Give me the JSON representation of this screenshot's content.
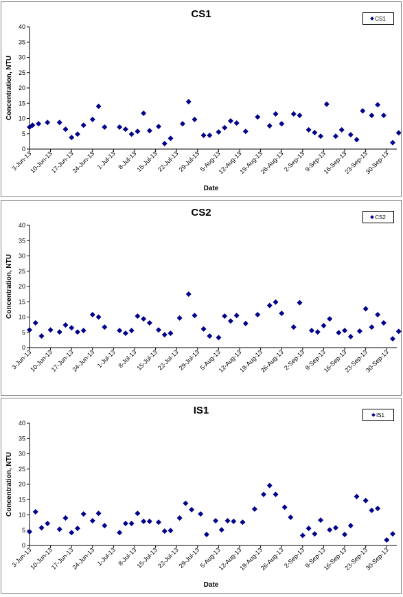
{
  "colors": {
    "marker": "#00008B",
    "axis": "#000000",
    "frame": "#808080"
  },
  "chart_data": [
    {
      "type": "scatter",
      "title": "CS1",
      "legend": "CS1",
      "legend_position": "top-right",
      "xlabel": "Date",
      "ylabel": "Concentration, NTU",
      "ylim": [
        0,
        40
      ],
      "yticks": [
        "0",
        "5",
        "10",
        "15",
        "20",
        "25",
        "30",
        "35",
        "40"
      ],
      "grid": false,
      "xticks": [
        "3-Jun-13",
        "10-Jun-13",
        "17-Jun-13",
        "24-Jun-13",
        "1-Jul-13",
        "8-Jul-13",
        "15-Jul-13",
        "22-Jul-13",
        "29-Jul-13",
        "5-Aug-13",
        "12-Aug-13",
        "19-Aug-13",
        "26-Aug-13",
        "2-Sep-13",
        "9-Sep-13",
        "16-Sep-13",
        "23-Sep-13",
        "30-Sep-13"
      ],
      "xlim": [
        "3-Jun-13",
        "2-Oct-13"
      ],
      "points": [
        {
          "x": "3-Jun-13",
          "y": 7.2
        },
        {
          "x": "4-Jun-13",
          "y": 7.8
        },
        {
          "x": "6-Jun-13",
          "y": 8.3
        },
        {
          "x": "9-Jun-13",
          "y": 8.7
        },
        {
          "x": "13-Jun-13",
          "y": 8.7
        },
        {
          "x": "15-Jun-13",
          "y": 6.5
        },
        {
          "x": "17-Jun-13",
          "y": 3.8
        },
        {
          "x": "19-Jun-13",
          "y": 4.9
        },
        {
          "x": "21-Jun-13",
          "y": 7.8
        },
        {
          "x": "24-Jun-13",
          "y": 9.7
        },
        {
          "x": "26-Jun-13",
          "y": 14
        },
        {
          "x": "28-Jun-13",
          "y": 7.2
        },
        {
          "x": "3-Jul-13",
          "y": 7.2
        },
        {
          "x": "5-Jul-13",
          "y": 6.5
        },
        {
          "x": "7-Jul-13",
          "y": 4.9
        },
        {
          "x": "9-Jul-13",
          "y": 5.8
        },
        {
          "x": "11-Jul-13",
          "y": 11.7
        },
        {
          "x": "13-Jul-13",
          "y": 6
        },
        {
          "x": "16-Jul-13",
          "y": 7.4
        },
        {
          "x": "18-Jul-13",
          "y": 1.8
        },
        {
          "x": "20-Jul-13",
          "y": 3.5
        },
        {
          "x": "24-Jul-13",
          "y": 8.3
        },
        {
          "x": "26-Jul-13",
          "y": 15.5
        },
        {
          "x": "28-Jul-13",
          "y": 9.7
        },
        {
          "x": "31-Jul-13",
          "y": 4.5
        },
        {
          "x": "2-Aug-13",
          "y": 4.5
        },
        {
          "x": "5-Aug-13",
          "y": 5.6
        },
        {
          "x": "7-Aug-13",
          "y": 7
        },
        {
          "x": "9-Aug-13",
          "y": 9.2
        },
        {
          "x": "11-Aug-13",
          "y": 8.5
        },
        {
          "x": "14-Aug-13",
          "y": 5.8
        },
        {
          "x": "18-Aug-13",
          "y": 10.5
        },
        {
          "x": "22-Aug-13",
          "y": 7.6
        },
        {
          "x": "24-Aug-13",
          "y": 11.5
        },
        {
          "x": "26-Aug-13",
          "y": 8.3
        },
        {
          "x": "30-Aug-13",
          "y": 11.5
        },
        {
          "x": "1-Sep-13",
          "y": 11
        },
        {
          "x": "4-Sep-13",
          "y": 6.3
        },
        {
          "x": "6-Sep-13",
          "y": 5.4
        },
        {
          "x": "8-Sep-13",
          "y": 4.2
        },
        {
          "x": "10-Sep-13",
          "y": 14.7
        },
        {
          "x": "13-Sep-13",
          "y": 4.2
        },
        {
          "x": "15-Sep-13",
          "y": 6.3
        },
        {
          "x": "18-Sep-13",
          "y": 4.7
        },
        {
          "x": "20-Sep-13",
          "y": 3.1
        },
        {
          "x": "22-Sep-13",
          "y": 12.5
        },
        {
          "x": "25-Sep-13",
          "y": 11
        },
        {
          "x": "27-Sep-13",
          "y": 14.5
        },
        {
          "x": "29-Sep-13",
          "y": 11
        },
        {
          "x": "2-Oct-13",
          "y": 2.1
        },
        {
          "x": "4-Oct-13",
          "y": 5.3
        }
      ]
    },
    {
      "type": "scatter",
      "title": "CS2",
      "legend": "CS2",
      "legend_position": "top-right",
      "xlabel": "",
      "ylabel": "Concentration, NTU",
      "ylim": [
        0,
        40
      ],
      "yticks": [
        "0",
        "5",
        "10",
        "15",
        "20",
        "25",
        "30",
        "35",
        "40"
      ],
      "grid": false,
      "xticks": [
        "3-Jun-13",
        "10-Jun-13",
        "17-Jun-13",
        "24-Jun-13",
        "1-Jul-13",
        "8-Jul-13",
        "15-Jul-13",
        "22-Jul-13",
        "29-Jul-13",
        "5-Aug-13",
        "12-Aug-13",
        "19-Aug-13",
        "26-Aug-13",
        "2-Sep-13",
        "9-Sep-13",
        "16-Sep-13",
        "23-Sep-13",
        "30-Sep-13"
      ],
      "xlim": [
        "3-Jun-13",
        "2-Oct-13"
      ],
      "points": [
        {
          "x": "3-Jun-13",
          "y": 5.8
        },
        {
          "x": "5-Jun-13",
          "y": 8.1
        },
        {
          "x": "7-Jun-13",
          "y": 3.8
        },
        {
          "x": "10-Jun-13",
          "y": 5.8
        },
        {
          "x": "13-Jun-13",
          "y": 5.1
        },
        {
          "x": "15-Jun-13",
          "y": 7.4
        },
        {
          "x": "17-Jun-13",
          "y": 6.5
        },
        {
          "x": "19-Jun-13",
          "y": 5.1
        },
        {
          "x": "21-Jun-13",
          "y": 5.6
        },
        {
          "x": "24-Jun-13",
          "y": 10.8
        },
        {
          "x": "26-Jun-13",
          "y": 10
        },
        {
          "x": "28-Jun-13",
          "y": 6.7
        },
        {
          "x": "3-Jul-13",
          "y": 5.6
        },
        {
          "x": "5-Jul-13",
          "y": 4.7
        },
        {
          "x": "7-Jul-13",
          "y": 5.6
        },
        {
          "x": "9-Jul-13",
          "y": 10.3
        },
        {
          "x": "11-Jul-13",
          "y": 9.4
        },
        {
          "x": "13-Jul-13",
          "y": 8.1
        },
        {
          "x": "16-Jul-13",
          "y": 5.8
        },
        {
          "x": "18-Jul-13",
          "y": 4.2
        },
        {
          "x": "20-Jul-13",
          "y": 4.7
        },
        {
          "x": "23-Jul-13",
          "y": 9.7
        },
        {
          "x": "26-Jul-13",
          "y": 17.5
        },
        {
          "x": "28-Jul-13",
          "y": 10.5
        },
        {
          "x": "31-Jul-13",
          "y": 6.1
        },
        {
          "x": "2-Aug-13",
          "y": 3.8
        },
        {
          "x": "5-Aug-13",
          "y": 3.3
        },
        {
          "x": "7-Aug-13",
          "y": 10.3
        },
        {
          "x": "9-Aug-13",
          "y": 8.7
        },
        {
          "x": "11-Aug-13",
          "y": 10.5
        },
        {
          "x": "14-Aug-13",
          "y": 7.9
        },
        {
          "x": "18-Aug-13",
          "y": 10.8
        },
        {
          "x": "22-Aug-13",
          "y": 13.8
        },
        {
          "x": "24-Aug-13",
          "y": 14.9
        },
        {
          "x": "26-Aug-13",
          "y": 11.2
        },
        {
          "x": "30-Aug-13",
          "y": 6.7
        },
        {
          "x": "1-Sep-13",
          "y": 14.7
        },
        {
          "x": "5-Sep-13",
          "y": 5.6
        },
        {
          "x": "7-Sep-13",
          "y": 5.1
        },
        {
          "x": "9-Sep-13",
          "y": 7.2
        },
        {
          "x": "11-Sep-13",
          "y": 9.4
        },
        {
          "x": "14-Sep-13",
          "y": 4.9
        },
        {
          "x": "16-Sep-13",
          "y": 5.6
        },
        {
          "x": "18-Sep-13",
          "y": 3.6
        },
        {
          "x": "21-Sep-13",
          "y": 5.4
        },
        {
          "x": "23-Sep-13",
          "y": 12.7
        },
        {
          "x": "25-Sep-13",
          "y": 6.7
        },
        {
          "x": "27-Sep-13",
          "y": 10.8
        },
        {
          "x": "29-Sep-13",
          "y": 8.1
        },
        {
          "x": "2-Oct-13",
          "y": 2.9
        },
        {
          "x": "4-Oct-13",
          "y": 5.3
        }
      ]
    },
    {
      "type": "scatter",
      "title": "IS1",
      "legend": "IS1",
      "legend_position": "top-right",
      "xlabel": "Date",
      "ylabel": "Concentration, NTU",
      "ylim": [
        0,
        40
      ],
      "yticks": [
        "0",
        "5",
        "10",
        "15",
        "20",
        "25",
        "30",
        "35",
        "40"
      ],
      "grid": false,
      "xticks": [
        "3-Jun-13",
        "10-Jun-13",
        "17-Jun-13",
        "24-Jun-13",
        "1-Jul-13",
        "8-Jul-13",
        "15-Jul-13",
        "22-Jul-13",
        "29-Jul-13",
        "5-Aug-13",
        "12-Aug-13",
        "19-Aug-13",
        "26-Aug-13",
        "2-Sep-13",
        "9-Sep-13",
        "16-Sep-13",
        "23-Sep-13",
        "30-Sep-13"
      ],
      "xlim": [
        "3-Jun-13",
        "2-Oct-13"
      ],
      "points": [
        {
          "x": "3-Jun-13",
          "y": 4.5
        },
        {
          "x": "5-Jun-13",
          "y": 11
        },
        {
          "x": "7-Jun-13",
          "y": 5.8
        },
        {
          "x": "9-Jun-13",
          "y": 7.2
        },
        {
          "x": "13-Jun-13",
          "y": 5.3
        },
        {
          "x": "15-Jun-13",
          "y": 9
        },
        {
          "x": "17-Jun-13",
          "y": 4.2
        },
        {
          "x": "19-Jun-13",
          "y": 5.6
        },
        {
          "x": "21-Jun-13",
          "y": 10.3
        },
        {
          "x": "24-Jun-13",
          "y": 8.1
        },
        {
          "x": "26-Jun-13",
          "y": 10.5
        },
        {
          "x": "28-Jun-13",
          "y": 6.5
        },
        {
          "x": "3-Jul-13",
          "y": 4.2
        },
        {
          "x": "5-Jul-13",
          "y": 7.2
        },
        {
          "x": "7-Jul-13",
          "y": 7.2
        },
        {
          "x": "9-Jul-13",
          "y": 10.5
        },
        {
          "x": "11-Jul-13",
          "y": 7.9
        },
        {
          "x": "13-Jul-13",
          "y": 7.9
        },
        {
          "x": "16-Jul-13",
          "y": 7.6
        },
        {
          "x": "18-Jul-13",
          "y": 4.7
        },
        {
          "x": "20-Jul-13",
          "y": 4.9
        },
        {
          "x": "23-Jul-13",
          "y": 9
        },
        {
          "x": "25-Jul-13",
          "y": 13.8
        },
        {
          "x": "27-Jul-13",
          "y": 11.7
        },
        {
          "x": "30-Jul-13",
          "y": 10.3
        },
        {
          "x": "1-Aug-13",
          "y": 3.6
        },
        {
          "x": "4-Aug-13",
          "y": 8.1
        },
        {
          "x": "6-Aug-13",
          "y": 5.1
        },
        {
          "x": "8-Aug-13",
          "y": 8.1
        },
        {
          "x": "10-Aug-13",
          "y": 7.9
        },
        {
          "x": "13-Aug-13",
          "y": 7.6
        },
        {
          "x": "17-Aug-13",
          "y": 11.9
        },
        {
          "x": "20-Aug-13",
          "y": 16.7
        },
        {
          "x": "22-Aug-13",
          "y": 19.6
        },
        {
          "x": "24-Aug-13",
          "y": 16.7
        },
        {
          "x": "27-Aug-13",
          "y": 12.5
        },
        {
          "x": "29-Aug-13",
          "y": 9.2
        },
        {
          "x": "2-Sep-13",
          "y": 3.3
        },
        {
          "x": "4-Sep-13",
          "y": 5.6
        },
        {
          "x": "6-Sep-13",
          "y": 3.8
        },
        {
          "x": "8-Sep-13",
          "y": 8.3
        },
        {
          "x": "11-Sep-13",
          "y": 5.1
        },
        {
          "x": "13-Sep-13",
          "y": 5.8
        },
        {
          "x": "16-Sep-13",
          "y": 3.6
        },
        {
          "x": "18-Sep-13",
          "y": 6.5
        },
        {
          "x": "20-Sep-13",
          "y": 16
        },
        {
          "x": "23-Sep-13",
          "y": 14.7
        },
        {
          "x": "25-Sep-13",
          "y": 11.5
        },
        {
          "x": "27-Sep-13",
          "y": 12.1
        },
        {
          "x": "30-Sep-13",
          "y": 1.8
        },
        {
          "x": "2-Oct-13",
          "y": 3.8
        }
      ]
    }
  ]
}
